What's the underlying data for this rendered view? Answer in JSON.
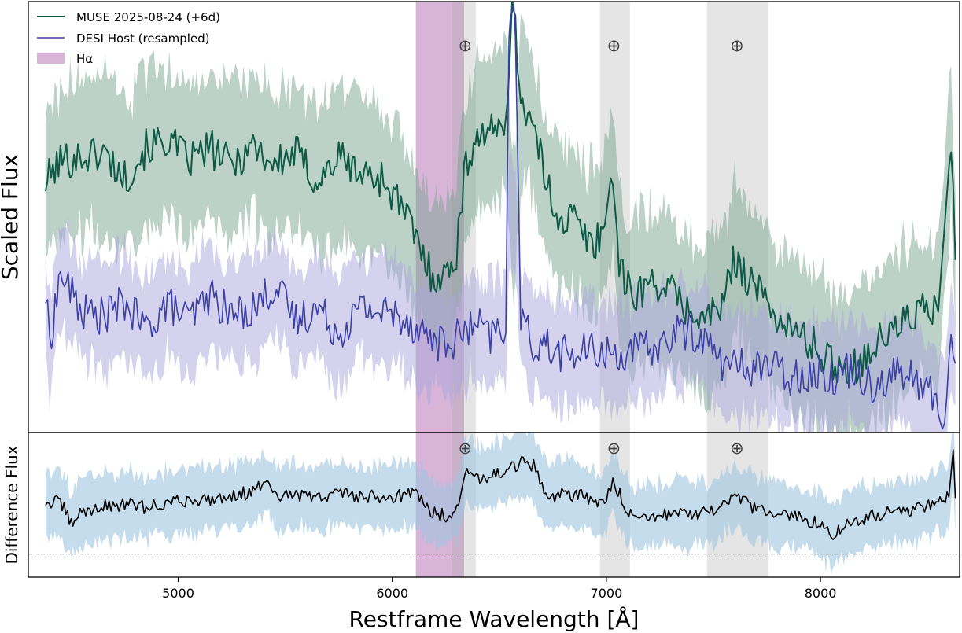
{
  "chart_data": {
    "type": "line",
    "xlabel": "Restframe Wavelength [Å]",
    "xlim": [
      4300,
      8650
    ],
    "xticks": [
      5000,
      6000,
      7000,
      8000
    ],
    "xtick_labels": [
      "5000",
      "6000",
      "7000",
      "8000"
    ],
    "legend": {
      "placement": "top-left",
      "entries": [
        {
          "label": "MUSE  2025-08-24 (+6d)",
          "kind": "line",
          "color": "#0d5a45"
        },
        {
          "label": "DESI Host (resampled)",
          "kind": "line",
          "color": "#3b3fa6"
        },
        {
          "label": "Hα",
          "kind": "patch",
          "color": "#b26bb2"
        }
      ]
    },
    "shaded_regions": [
      {
        "name": "H-alpha",
        "x0": 6110,
        "x1": 6335,
        "color": "#b26bb2",
        "opacity": 0.5
      },
      {
        "name": "telluric-1",
        "x0": 6280,
        "x1": 6390,
        "color": "#aaaaaa",
        "opacity": 0.3
      },
      {
        "name": "telluric-2",
        "x0": 6970,
        "x1": 7110,
        "color": "#aaaaaa",
        "opacity": 0.3
      },
      {
        "name": "telluric-3",
        "x0": 7470,
        "x1": 7755,
        "color": "#aaaaaa",
        "opacity": 0.3
      }
    ],
    "telluric_markers": [
      {
        "x": 6340,
        "symbol": "⊕"
      },
      {
        "x": 7035,
        "symbol": "⊕"
      },
      {
        "x": 7610,
        "symbol": "⊕"
      }
    ],
    "panels": [
      {
        "name": "top",
        "ylabel": "Scaled Flux",
        "ylim": [
          0,
          1
        ],
        "series": [
          {
            "name": "MUSE  2025-08-24 (+6d)",
            "color": "#0d5a45",
            "band_color": "#7aa392",
            "band_opacity": 0.5,
            "band_halfwidth": 0.17,
            "x": [
              4380,
              4450,
              4550,
              4650,
              4750,
              4850,
              4950,
              5050,
              5150,
              5250,
              5350,
              5450,
              5550,
              5650,
              5750,
              5850,
              5950,
              6050,
              6110,
              6180,
              6250,
              6300,
              6335,
              6380,
              6430,
              6480,
              6530,
              6560,
              6575,
              6600,
              6650,
              6700,
              6750,
              6800,
              6850,
              6900,
              6950,
              7000,
              7030,
              7060,
              7110,
              7150,
              7250,
              7350,
              7450,
              7550,
              7600,
              7650,
              7750,
              7850,
              7950,
              8050,
              8150,
              8250,
              8350,
              8450,
              8550,
              8610,
              8630
            ],
            "y": [
              0.58,
              0.63,
              0.64,
              0.65,
              0.59,
              0.66,
              0.68,
              0.63,
              0.66,
              0.62,
              0.67,
              0.62,
              0.65,
              0.58,
              0.64,
              0.6,
              0.59,
              0.52,
              0.45,
              0.37,
              0.36,
              0.42,
              0.59,
              0.68,
              0.7,
              0.69,
              0.74,
              0.98,
              0.93,
              0.78,
              0.72,
              0.62,
              0.53,
              0.49,
              0.5,
              0.45,
              0.44,
              0.5,
              0.61,
              0.39,
              0.32,
              0.33,
              0.35,
              0.3,
              0.26,
              0.3,
              0.41,
              0.37,
              0.3,
              0.24,
              0.21,
              0.16,
              0.15,
              0.2,
              0.24,
              0.28,
              0.28,
              0.68,
              0.4
            ],
            "band_y": [
              0.58,
              0.63,
              0.64,
              0.65,
              0.59,
              0.66,
              0.68,
              0.63,
              0.66,
              0.62,
              0.67,
              0.62,
              0.65,
              0.58,
              0.64,
              0.6,
              0.59,
              0.52,
              0.45,
              0.37,
              0.36,
              0.42,
              0.59,
              0.68,
              0.7,
              0.69,
              0.74,
              0.5,
              0.5,
              0.78,
              0.72,
              0.62,
              0.53,
              0.49,
              0.5,
              0.45,
              0.44,
              0.5,
              0.61,
              0.39,
              0.32,
              0.33,
              0.35,
              0.3,
              0.26,
              0.3,
              0.41,
              0.37,
              0.3,
              0.24,
              0.21,
              0.16,
              0.15,
              0.2,
              0.24,
              0.28,
              0.28,
              0.68,
              0.4
            ]
          },
          {
            "name": "DESI Host (resampled)",
            "color": "#3b3fa6",
            "band_color": "#a9a6dc",
            "band_opacity": 0.5,
            "band_halfwidth": 0.12,
            "x": [
              4380,
              4400,
              4450,
              4550,
              4650,
              4750,
              4850,
              4950,
              5050,
              5150,
              5250,
              5350,
              5450,
              5550,
              5650,
              5750,
              5850,
              5950,
              6050,
              6150,
              6250,
              6330,
              6400,
              6450,
              6500,
              6530,
              6545,
              6560,
              6575,
              6600,
              6650,
              6700,
              6750,
              6850,
              6950,
              7050,
              7150,
              7250,
              7350,
              7450,
              7550,
              7650,
              7750,
              7850,
              7950,
              8050,
              8150,
              8250,
              8350,
              8450,
              8550,
              8580,
              8610,
              8630
            ],
            "y": [
              0.32,
              0.21,
              0.37,
              0.28,
              0.27,
              0.3,
              0.24,
              0.3,
              0.26,
              0.32,
              0.27,
              0.29,
              0.34,
              0.26,
              0.29,
              0.23,
              0.29,
              0.28,
              0.27,
              0.23,
              0.2,
              0.23,
              0.25,
              0.22,
              0.24,
              0.23,
              0.95,
              0.98,
              0.92,
              0.28,
              0.2,
              0.21,
              0.19,
              0.18,
              0.19,
              0.18,
              0.19,
              0.2,
              0.24,
              0.22,
              0.16,
              0.15,
              0.16,
              0.13,
              0.14,
              0.13,
              0.15,
              0.11,
              0.14,
              0.12,
              0.07,
              0.02,
              0.21,
              0.16
            ],
            "band_y": [
              0.32,
              0.21,
              0.37,
              0.28,
              0.27,
              0.3,
              0.24,
              0.3,
              0.26,
              0.32,
              0.27,
              0.29,
              0.34,
              0.26,
              0.29,
              0.23,
              0.29,
              0.28,
              0.27,
              0.23,
              0.2,
              0.23,
              0.25,
              0.22,
              0.24,
              0.23,
              0.5,
              0.5,
              0.5,
              0.28,
              0.2,
              0.21,
              0.19,
              0.18,
              0.19,
              0.18,
              0.19,
              0.2,
              0.24,
              0.22,
              0.16,
              0.15,
              0.16,
              0.13,
              0.14,
              0.13,
              0.15,
              0.11,
              0.14,
              0.12,
              0.07,
              0.02,
              0.21,
              0.16
            ]
          }
        ]
      },
      {
        "name": "bottom",
        "ylabel": "Difference Flux",
        "ylim": [
          -0.5,
          1
        ],
        "zero_line": 0,
        "series": [
          {
            "name": "Difference",
            "color": "#000000",
            "band_color": "#9ec4e0",
            "band_opacity": 0.6,
            "band_halfwidth": 0.33,
            "x": [
              4380,
              4450,
              4500,
              4550,
              4650,
              4750,
              4850,
              4950,
              5050,
              5150,
              5250,
              5350,
              5400,
              5450,
              5550,
              5650,
              5750,
              5850,
              5950,
              6050,
              6110,
              6180,
              6250,
              6310,
              6340,
              6400,
              6450,
              6500,
              6550,
              6620,
              6660,
              6700,
              6750,
              6800,
              6850,
              6900,
              6950,
              7000,
              7030,
              7080,
              7130,
              7200,
              7300,
              7400,
              7500,
              7600,
              7700,
              7800,
              7900,
              8000,
              8050,
              8100,
              8150,
              8250,
              8350,
              8450,
              8550,
              8600,
              8620,
              8630
            ],
            "y": [
              0.27,
              0.28,
              0.05,
              0.18,
              0.23,
              0.26,
              0.22,
              0.27,
              0.3,
              0.31,
              0.35,
              0.38,
              0.5,
              0.33,
              0.35,
              0.32,
              0.38,
              0.34,
              0.33,
              0.35,
              0.38,
              0.18,
              0.13,
              0.25,
              0.58,
              0.54,
              0.55,
              0.58,
              0.62,
              0.7,
              0.65,
              0.42,
              0.33,
              0.41,
              0.34,
              0.35,
              0.25,
              0.3,
              0.48,
              0.28,
              0.09,
              0.13,
              0.17,
              0.15,
              0.17,
              0.32,
              0.21,
              0.14,
              0.12,
              0.06,
              -0.08,
              0.02,
              0.07,
              0.14,
              0.18,
              0.21,
              0.29,
              0.33,
              0.82,
              0.32
            ]
          }
        ]
      }
    ]
  }
}
